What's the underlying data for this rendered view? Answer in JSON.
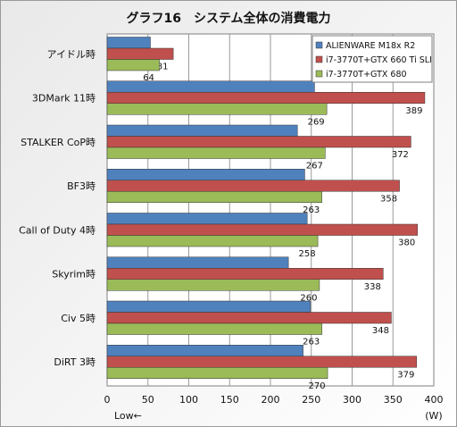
{
  "chart_data": {
    "type": "bar",
    "orientation": "horizontal",
    "title": "グラフ16　システム全体の消費電力",
    "categories": [
      "アイドル時",
      "3DMark 11時",
      "STALKER  CoP時",
      "BF3時",
      "Call of Duty 4時",
      "Skyrim時",
      "Civ 5時",
      "DiRT 3時"
    ],
    "series": [
      {
        "name": "ALIENWARE M18x R2",
        "color": "#4f81bd",
        "values": [
          53,
          254,
          233,
          242,
          245,
          222,
          249,
          240
        ]
      },
      {
        "name": "i7-3770T+GTX 660 Ti SLI",
        "color": "#c0504d",
        "values": [
          81,
          389,
          372,
          358,
          380,
          338,
          348,
          379
        ]
      },
      {
        "name": "i7-3770T+GTX 680",
        "color": "#9bbb59",
        "values": [
          64,
          269,
          267,
          263,
          258,
          260,
          263,
          270
        ]
      }
    ],
    "xlim": [
      0,
      400
    ],
    "xticks": [
      0,
      50,
      100,
      150,
      200,
      250,
      300,
      350,
      400
    ],
    "xlabel_left": "Low←",
    "xlabel_unit": "(W)",
    "legend_position": "top-right",
    "grid": "vertical"
  }
}
